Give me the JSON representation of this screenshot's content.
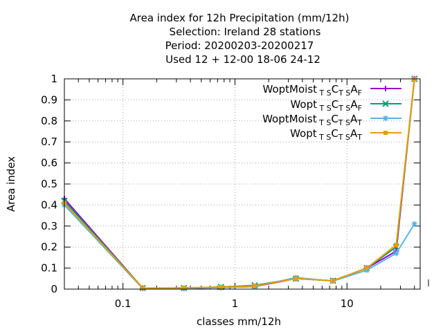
{
  "chart_data": {
    "type": "line",
    "title_lines": [
      "Area index  for 12h Precipitation (mm/12h)",
      "Selection: Ireland      28 stations",
      "Period: 20200203-20200217",
      "Used  12 + 12-00 18-06 24-12"
    ],
    "xlabel": "classes mm/12h",
    "ylabel": "Area index",
    "xscale": "log",
    "xlim": [
      0.03,
      45
    ],
    "ylim": [
      0,
      1
    ],
    "xticks": [
      0.1,
      1,
      10
    ],
    "xtick_labels": [
      "0.1",
      "1",
      "10"
    ],
    "yticks": [
      0,
      0.1,
      0.2,
      0.3,
      0.4,
      0.5,
      0.6,
      0.7,
      0.8,
      0.9,
      1
    ],
    "ytick_labels": [
      "0",
      "0.1",
      "0.2",
      "0.3",
      "0.4",
      "0.5",
      "0.6",
      "0.7",
      "0.8",
      "0.9",
      "1"
    ],
    "grid": true,
    "legend_position": "top-right",
    "x": [
      0.03,
      0.15,
      0.35,
      0.75,
      1.5,
      3.5,
      7.5,
      15,
      27.5,
      40
    ],
    "series": [
      {
        "name_main": "WoptMoist",
        "name_parts": [
          [
            "T",
            "S"
          ],
          [
            "C"
          ],
          [
            "T",
            "S"
          ],
          [
            "A"
          ],
          [
            "F"
          ]
        ],
        "color": "#9400d3",
        "marker": "plus",
        "values": [
          0.43,
          0.005,
          0.003,
          0.008,
          0.012,
          0.05,
          0.04,
          0.1,
          0.18,
          1.0
        ]
      },
      {
        "name_main": "Wopt",
        "name_parts": [
          [
            "T",
            "S"
          ],
          [
            "C"
          ],
          [
            "T",
            "S"
          ],
          [
            "A"
          ],
          [
            "F"
          ]
        ],
        "color": "#009e73",
        "marker": "x",
        "values": [
          0.42,
          0.005,
          0.005,
          0.01,
          0.018,
          0.05,
          0.04,
          0.1,
          0.2,
          1.0
        ]
      },
      {
        "name_main": "WoptMoist",
        "name_parts": [
          [
            "T",
            "S"
          ],
          [
            "C"
          ],
          [
            "T",
            "S"
          ],
          [
            "A"
          ],
          [
            "T"
          ]
        ],
        "color": "#56b4e9",
        "marker": "star",
        "values": [
          0.4,
          0.003,
          0.004,
          0.008,
          0.012,
          0.055,
          0.038,
          0.09,
          0.17,
          0.31
        ]
      },
      {
        "name_main": "Wopt",
        "name_parts": [
          [
            "T",
            "S"
          ],
          [
            "C"
          ],
          [
            "T",
            "S"
          ],
          [
            "A"
          ],
          [
            "T"
          ]
        ],
        "color": "#e69f00",
        "marker": "square",
        "values": [
          0.41,
          0.005,
          0.006,
          0.01,
          0.015,
          0.05,
          0.04,
          0.1,
          0.21,
          1.0
        ]
      }
    ]
  }
}
